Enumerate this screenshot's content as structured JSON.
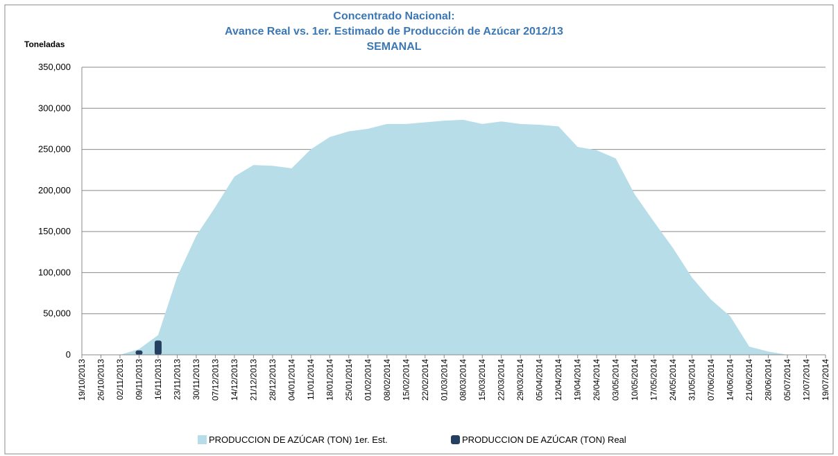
{
  "chart_data": {
    "type": "area",
    "title": [
      "Concentrado Nacional:",
      "Avance Real vs. 1er. Estimado de Producción de Azúcar 2012/13",
      "SEMANAL"
    ],
    "y_label": "Toneladas",
    "categories": [
      "19/10/2013",
      "26/10/2013",
      "02/11/2013",
      "09/11/2013",
      "16/11/2013",
      "23/11/2013",
      "30/11/2013",
      "07/12/2013",
      "14/12/2013",
      "21/12/2013",
      "28/12/2013",
      "04/01/2014",
      "11/01/2014",
      "18/01/2014",
      "25/01/2014",
      "01/02/2014",
      "08/02/2014",
      "15/02/2014",
      "22/02/2014",
      "01/03/2014",
      "08/03/2014",
      "15/03/2014",
      "22/03/2014",
      "29/03/2014",
      "05/04/2014",
      "12/04/2014",
      "19/04/2014",
      "26/04/2014",
      "03/05/2014",
      "10/05/2014",
      "17/05/2014",
      "24/05/2014",
      "31/05/2014",
      "07/06/2014",
      "14/06/2014",
      "21/06/2014",
      "28/06/2014",
      "05/07/2014",
      "12/07/2014",
      "19/07/2014"
    ],
    "series": [
      {
        "name": "PRODUCCION DE AZÚCAR (TON) 1er. Est.",
        "color": "#b7dde8",
        "type": "area",
        "values": [
          0,
          0,
          0,
          7000,
          24000,
          95000,
          145000,
          180000,
          217000,
          231000,
          230000,
          227000,
          250000,
          265000,
          272000,
          275000,
          281000,
          281000,
          283000,
          285000,
          286000,
          281000,
          284000,
          281000,
          280000,
          278000,
          253000,
          249000,
          239000,
          195000,
          162000,
          130000,
          94000,
          67000,
          47000,
          10000,
          4000,
          0,
          0,
          0
        ]
      },
      {
        "name": "PRODUCCION DE AZÚCAR (TON) Real",
        "color": "#243f60",
        "type": "bar",
        "values": [
          null,
          null,
          null,
          2000,
          14000,
          null,
          null,
          null,
          null,
          null,
          null,
          null,
          null,
          null,
          null,
          null,
          null,
          null,
          null,
          null,
          null,
          null,
          null,
          null,
          null,
          null,
          null,
          null,
          null,
          null,
          null,
          null,
          null,
          null,
          null,
          null,
          null,
          null,
          null,
          null
        ]
      }
    ],
    "ylim": [
      0,
      350000
    ],
    "yticks": [
      {
        "value": 0,
        "label": "0"
      },
      {
        "value": 50000,
        "label": "50,000"
      },
      {
        "value": 100000,
        "label": "100,000"
      },
      {
        "value": 150000,
        "label": "150,000"
      },
      {
        "value": 200000,
        "label": "200,000"
      },
      {
        "value": 250000,
        "label": "250,000"
      },
      {
        "value": 300000,
        "label": "300,000"
      },
      {
        "value": 350000,
        "label": "350,000"
      }
    ],
    "grid": true,
    "legend": "bottom",
    "title_color": "#3b77b5"
  }
}
